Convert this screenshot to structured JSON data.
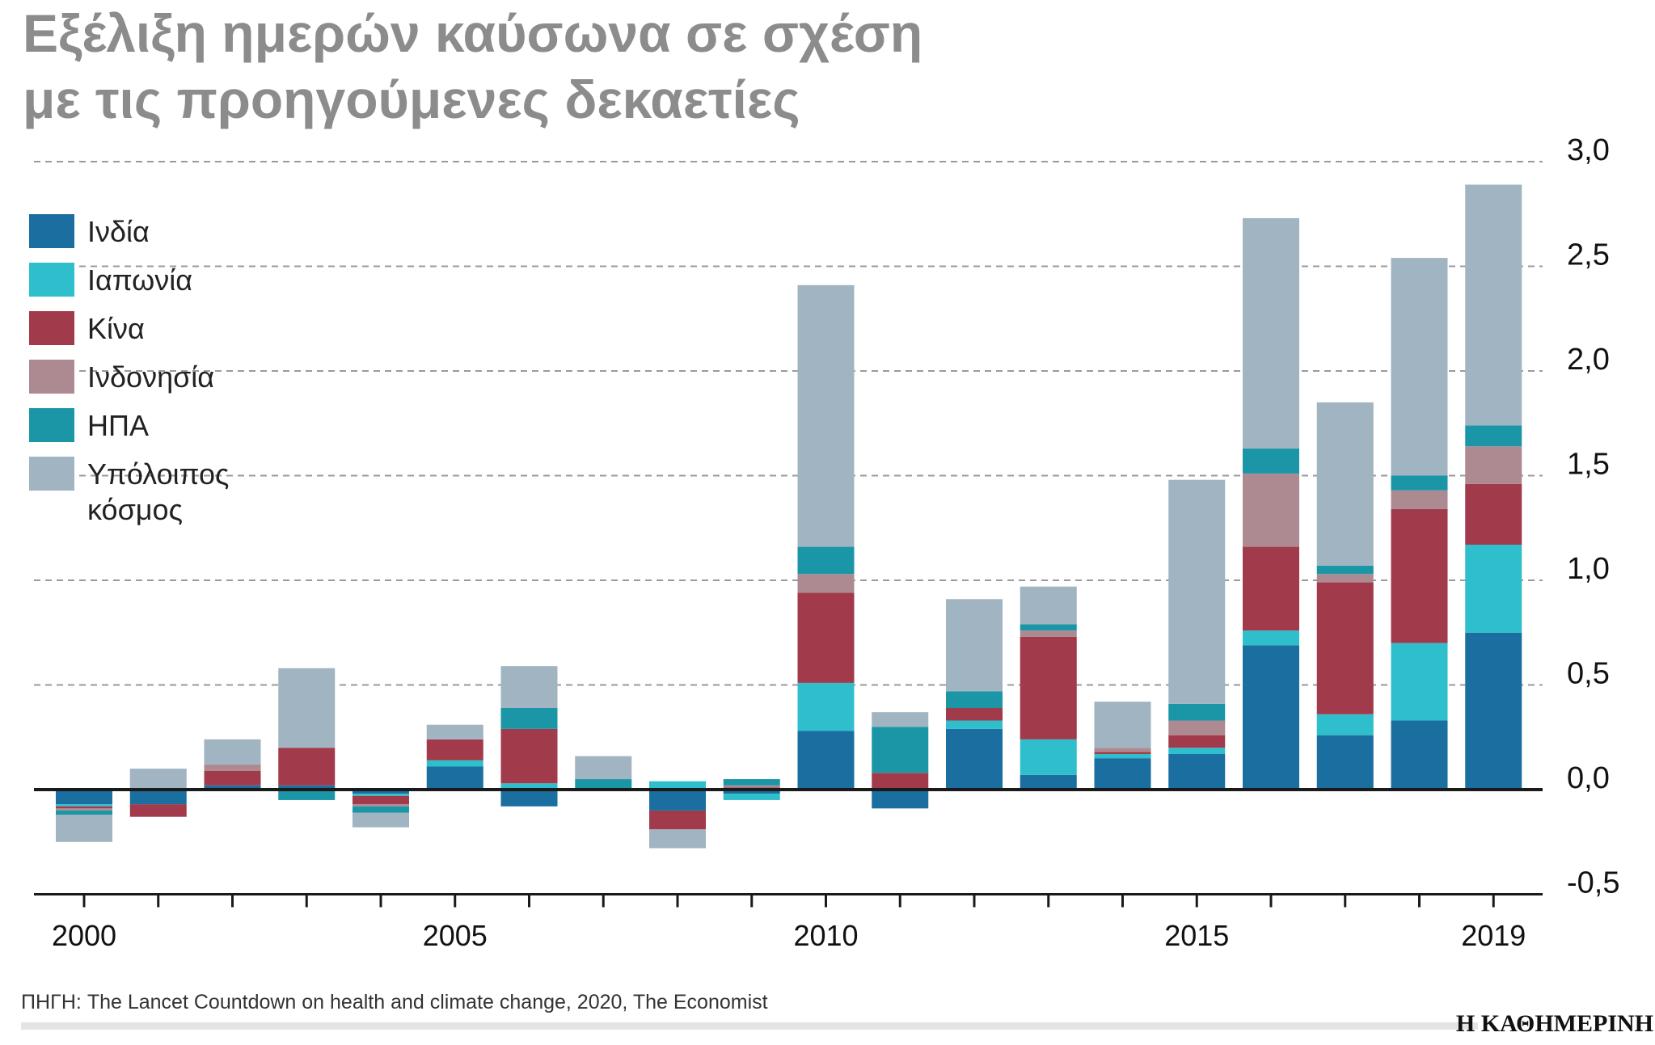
{
  "title_line1": "Εξέλιξη ημερών καύσωνα σε σχέση",
  "title_line2": "με τις προηγούμενες δεκαετίες",
  "source": "ΠΗΓΗ: The Lancet Countdown on health and climate change, 2020, The Economist",
  "brand": "Η ΚΑΘΗΜΕΡΙΝΗ",
  "chart_data": {
    "type": "bar",
    "stacked": true,
    "title": "Εξέλιξη ημερών καύσωνα σε σχέση με τις προηγούμενες δεκαετίες",
    "xlabel": "",
    "ylabel": "",
    "ylim": [
      -0.5,
      3.0
    ],
    "yticks": [
      -0.5,
      0.0,
      0.5,
      1.0,
      1.5,
      2.0,
      2.5,
      3.0
    ],
    "ytick_labels": [
      "-0,5",
      "0,0",
      "0,5",
      "1,0",
      "1,5",
      "2,0",
      "2,5",
      "3,0"
    ],
    "y_axis_side": "right",
    "grid": "dashed horizontal",
    "legend_position": "top-left",
    "categories": [
      "2000",
      "2001",
      "2002",
      "2003",
      "2004",
      "2005",
      "2006",
      "2007",
      "2008",
      "2009",
      "2010",
      "2011",
      "2012",
      "2013",
      "2014",
      "2015",
      "2016",
      "2017",
      "2018",
      "2019"
    ],
    "x_tick_labels": [
      {
        "year": "2000",
        "label": "2000"
      },
      {
        "year": "2005",
        "label": "2005"
      },
      {
        "year": "2010",
        "label": "2010"
      },
      {
        "year": "2015",
        "label": "2015"
      },
      {
        "year": "2019",
        "label": "2019"
      }
    ],
    "series": [
      {
        "name": "Ινδία",
        "color": "#1a6fa0",
        "values": [
          -0.07,
          -0.07,
          0.02,
          0.02,
          -0.02,
          0.11,
          -0.08,
          0.0,
          -0.1,
          -0.02,
          0.28,
          -0.09,
          0.29,
          0.07,
          0.15,
          0.17,
          0.69,
          0.26,
          0.33,
          0.75
        ]
      },
      {
        "name": "Ιαπωνία",
        "color": "#2fbfcc",
        "values": [
          -0.01,
          0.0,
          0.0,
          0.0,
          -0.01,
          0.03,
          0.03,
          0.0,
          0.04,
          -0.03,
          0.23,
          0.0,
          0.04,
          0.17,
          0.02,
          0.03,
          0.07,
          0.1,
          0.37,
          0.42
        ]
      },
      {
        "name": "Κίνα",
        "color": "#a13a4a",
        "values": [
          -0.01,
          -0.06,
          0.07,
          0.18,
          -0.04,
          0.1,
          0.26,
          0.0,
          -0.09,
          0.01,
          0.43,
          0.08,
          0.06,
          0.49,
          0.01,
          0.06,
          0.4,
          0.63,
          0.64,
          0.29
        ]
      },
      {
        "name": "Ινδονησία",
        "color": "#ad8a92",
        "values": [
          -0.01,
          0.0,
          0.03,
          0.0,
          -0.01,
          0.0,
          0.0,
          0.0,
          0.0,
          0.01,
          0.09,
          0.0,
          0.0,
          0.03,
          0.02,
          0.07,
          0.35,
          0.04,
          0.09,
          0.18
        ]
      },
      {
        "name": "ΗΠΑ",
        "color": "#1b96a6",
        "values": [
          -0.02,
          0.0,
          0.0,
          -0.05,
          -0.03,
          0.0,
          0.1,
          0.05,
          0.0,
          0.03,
          0.13,
          0.22,
          0.08,
          0.03,
          0.0,
          0.08,
          0.12,
          0.04,
          0.07,
          0.1
        ]
      },
      {
        "name": "Υπόλοιπος κόσμος",
        "color": "#a0b4c1",
        "values": [
          -0.13,
          0.1,
          0.12,
          0.38,
          -0.07,
          0.07,
          0.2,
          0.11,
          -0.09,
          0.0,
          1.25,
          0.07,
          0.44,
          0.18,
          0.22,
          1.07,
          1.1,
          0.78,
          1.04,
          1.15
        ]
      }
    ]
  }
}
